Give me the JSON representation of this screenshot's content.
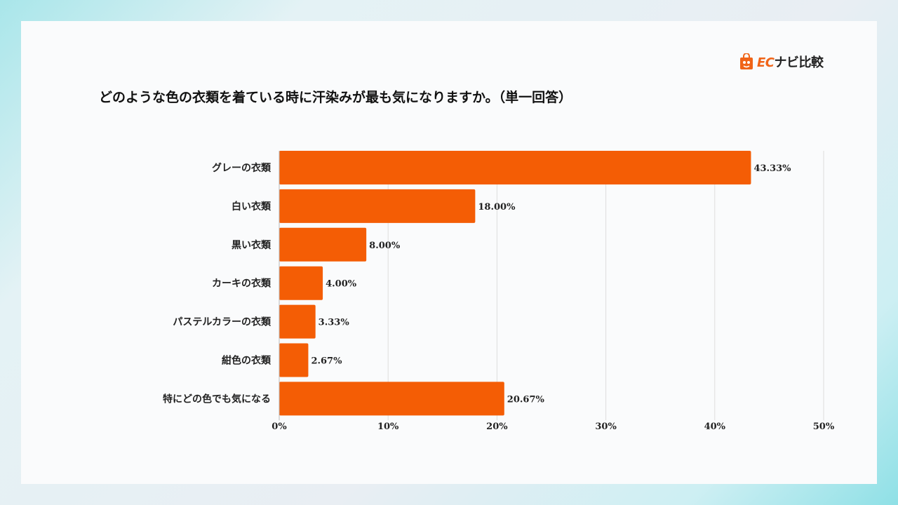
{
  "logo": {
    "ec": "EC",
    "rest": "ナビ比較"
  },
  "title": "どのような色の衣類を着ている時に汗染みが最も気になりますか。（単一回答）",
  "colors": {
    "bar": "#f45d05",
    "grid": "#dddddd"
  },
  "chart_data": {
    "type": "bar",
    "orientation": "horizontal",
    "title": "どのような色の衣類を着ている時に汗染みが最も気になりますか。（単一回答）",
    "categories": [
      "グレーの衣類",
      "白い衣類",
      "黒い衣類",
      "カーキの衣類",
      "パステルカラーの衣類",
      "紺色の衣類",
      "特にどの色でも気になる"
    ],
    "values": [
      43.33,
      18.0,
      8.0,
      4.0,
      3.33,
      2.67,
      20.67
    ],
    "value_labels": [
      "43.33%",
      "18.00%",
      "8.00%",
      "4.00%",
      "3.33%",
      "2.67%",
      "20.67%"
    ],
    "xlim": [
      0,
      50
    ],
    "xticks": [
      "0%",
      "10%",
      "20%",
      "30%",
      "40%",
      "50%"
    ],
    "grid": true
  }
}
